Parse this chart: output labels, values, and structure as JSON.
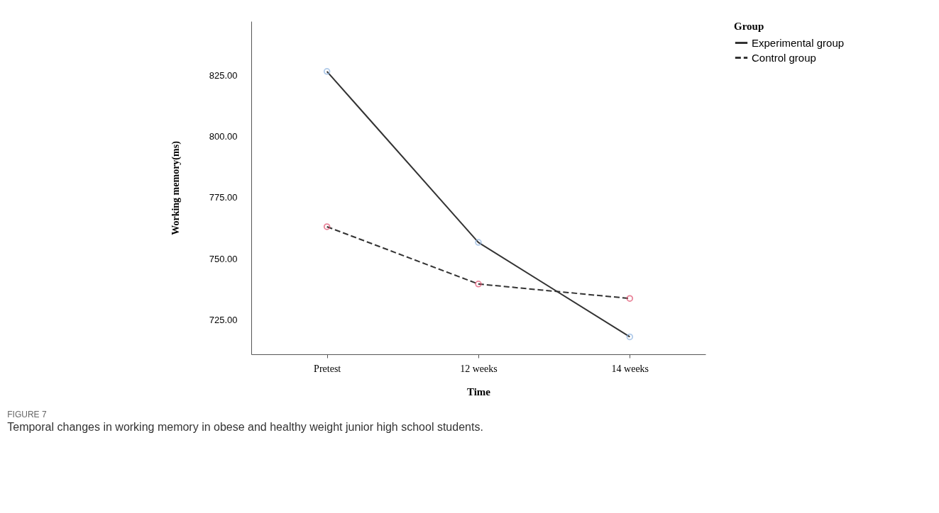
{
  "chart_data": {
    "type": "line",
    "xlabel": "Time",
    "ylabel": "Working memory(ms)",
    "legend_title": "Group",
    "categories": [
      "Pretest",
      "12 weeks",
      "14 weeks"
    ],
    "series": [
      {
        "name": "Experimental group",
        "color": "#333333",
        "line_style": "solid",
        "colors": [
          "#8fb4e0",
          "#8fb4e0",
          "#8fb4e0"
        ],
        "values": [
          826.5,
          756.7,
          718.1
        ]
      },
      {
        "name": "Control group",
        "color": "#333333",
        "line_style": "dashed",
        "colors": [
          "#e0506e",
          "#e0506e",
          "#e0506e"
        ],
        "values": [
          763.1,
          739.7,
          733.8
        ]
      }
    ],
    "ylim": [
      711,
      847
    ],
    "yticks": [
      {
        "value": 725,
        "label": "725.00"
      },
      {
        "value": 750,
        "label": "750.00"
      },
      {
        "value": 775,
        "label": "775.00"
      },
      {
        "value": 800,
        "label": "800.00"
      },
      {
        "value": 825,
        "label": "825.00"
      }
    ],
    "marker": "circle",
    "grid": false,
    "legend": "top right",
    "annotations": [
      "FIGURE 7",
      "Temporal changes in working memory in obese and healthy weight junior high school students."
    ]
  }
}
